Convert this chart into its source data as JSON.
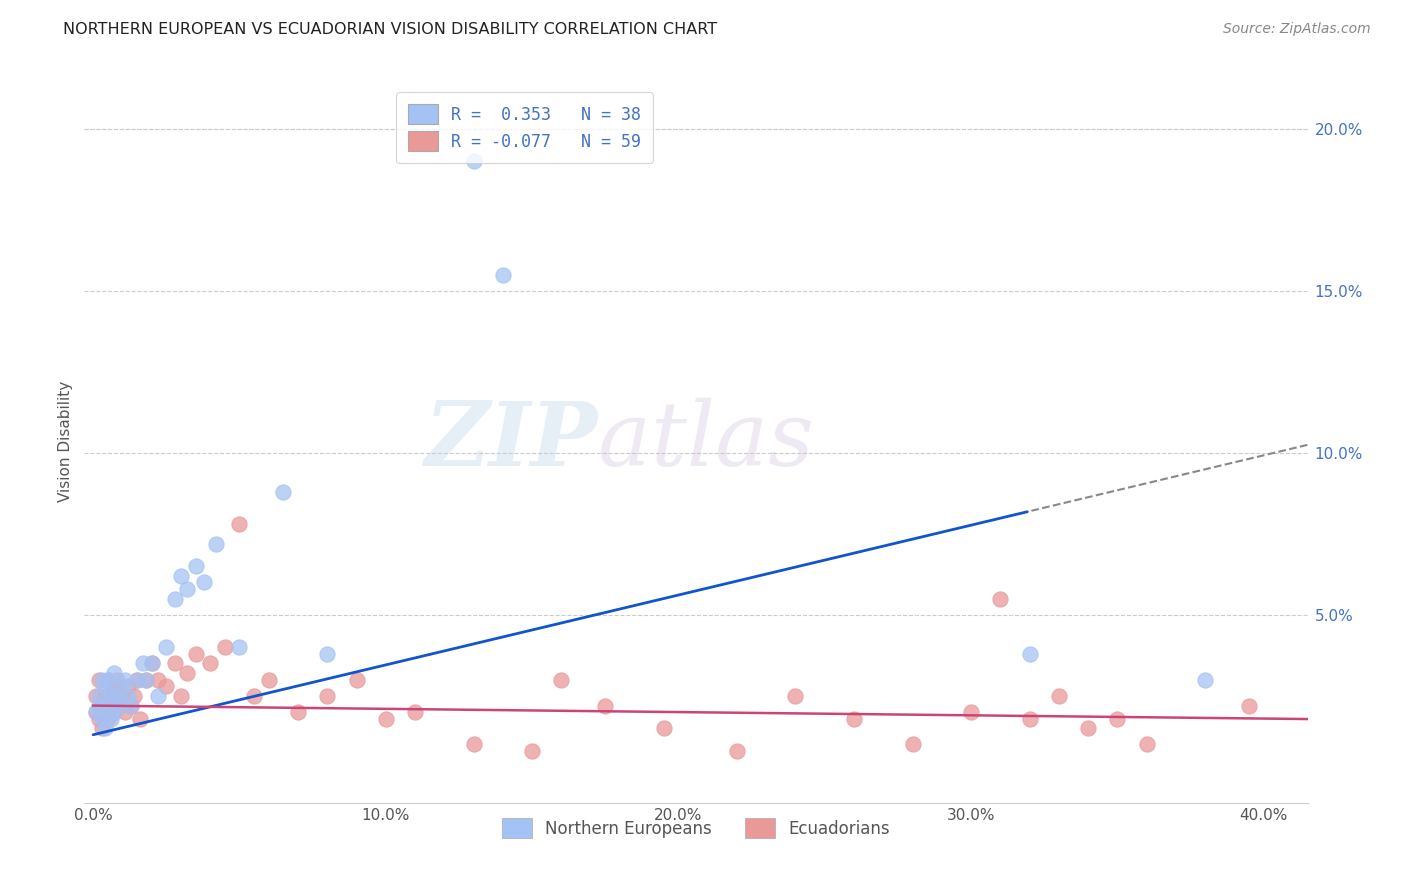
{
  "title": "NORTHERN EUROPEAN VS ECUADORIAN VISION DISABILITY CORRELATION CHART",
  "source": "Source: ZipAtlas.com",
  "ylabel": "Vision Disability",
  "xlabel_ticks": [
    "0.0%",
    "10.0%",
    "20.0%",
    "30.0%",
    "40.0%"
  ],
  "xlabel_vals": [
    0.0,
    0.1,
    0.2,
    0.3,
    0.4
  ],
  "ylabel_ticks": [
    "5.0%",
    "10.0%",
    "15.0%",
    "20.0%"
  ],
  "ylabel_vals": [
    0.05,
    0.1,
    0.15,
    0.2
  ],
  "xlim": [
    -0.003,
    0.415
  ],
  "ylim": [
    -0.008,
    0.215
  ],
  "blue_color": "#a4c2f4",
  "pink_color": "#ea9999",
  "blue_line_color": "#1155cc",
  "pink_line_color": "#cc4477",
  "watermark_zip": "ZIP",
  "watermark_atlas": "atlas",
  "ne_R": 0.353,
  "ne_N": 38,
  "ec_R": -0.077,
  "ec_N": 59,
  "northern_europeans_x": [
    0.001,
    0.002,
    0.002,
    0.003,
    0.003,
    0.004,
    0.004,
    0.005,
    0.005,
    0.006,
    0.006,
    0.007,
    0.007,
    0.008,
    0.009,
    0.01,
    0.011,
    0.012,
    0.013,
    0.015,
    0.017,
    0.018,
    0.02,
    0.022,
    0.025,
    0.028,
    0.03,
    0.032,
    0.035,
    0.038,
    0.042,
    0.05,
    0.065,
    0.08,
    0.13,
    0.14,
    0.32,
    0.38
  ],
  "northern_europeans_y": [
    0.02,
    0.025,
    0.022,
    0.018,
    0.03,
    0.015,
    0.028,
    0.022,
    0.03,
    0.018,
    0.025,
    0.02,
    0.032,
    0.025,
    0.022,
    0.028,
    0.03,
    0.025,
    0.022,
    0.03,
    0.035,
    0.03,
    0.035,
    0.025,
    0.04,
    0.055,
    0.062,
    0.058,
    0.065,
    0.06,
    0.072,
    0.04,
    0.088,
    0.038,
    0.19,
    0.155,
    0.038,
    0.03
  ],
  "ecuadorians_x": [
    0.001,
    0.001,
    0.002,
    0.002,
    0.003,
    0.003,
    0.004,
    0.004,
    0.005,
    0.005,
    0.006,
    0.006,
    0.007,
    0.007,
    0.008,
    0.008,
    0.009,
    0.01,
    0.011,
    0.012,
    0.013,
    0.014,
    0.015,
    0.016,
    0.018,
    0.02,
    0.022,
    0.025,
    0.028,
    0.03,
    0.032,
    0.035,
    0.04,
    0.045,
    0.05,
    0.055,
    0.06,
    0.07,
    0.08,
    0.09,
    0.1,
    0.11,
    0.13,
    0.15,
    0.16,
    0.175,
    0.195,
    0.22,
    0.24,
    0.26,
    0.28,
    0.3,
    0.31,
    0.32,
    0.33,
    0.34,
    0.35,
    0.36,
    0.395
  ],
  "ecuadorians_y": [
    0.02,
    0.025,
    0.018,
    0.03,
    0.015,
    0.022,
    0.025,
    0.02,
    0.03,
    0.018,
    0.025,
    0.022,
    0.028,
    0.02,
    0.025,
    0.03,
    0.022,
    0.025,
    0.02,
    0.028,
    0.022,
    0.025,
    0.03,
    0.018,
    0.03,
    0.035,
    0.03,
    0.028,
    0.035,
    0.025,
    0.032,
    0.038,
    0.035,
    0.04,
    0.078,
    0.025,
    0.03,
    0.02,
    0.025,
    0.03,
    0.018,
    0.02,
    0.01,
    0.008,
    0.03,
    0.022,
    0.015,
    0.008,
    0.025,
    0.018,
    0.01,
    0.02,
    0.055,
    0.018,
    0.025,
    0.015,
    0.018,
    0.01,
    0.022
  ]
}
